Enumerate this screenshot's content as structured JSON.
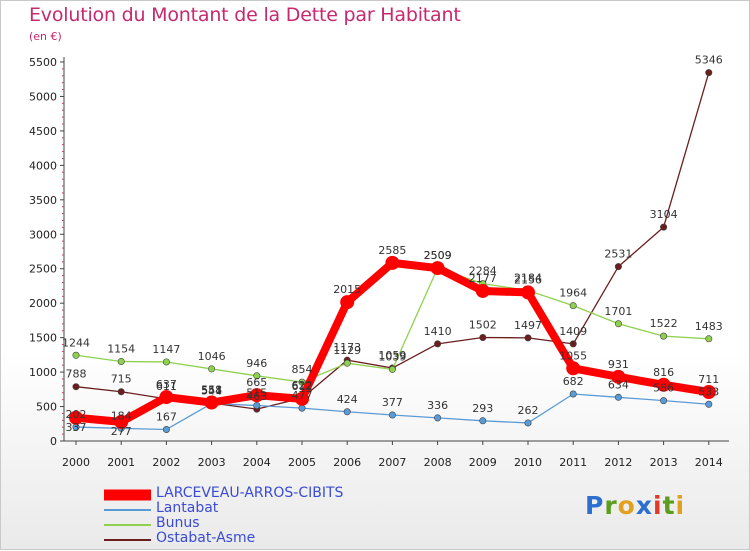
{
  "title": "Evolution du Montant de la Dette par Habitant",
  "subtitle": "(en €)",
  "logo": {
    "letters": [
      "P",
      "r",
      "o",
      "x",
      "i",
      "t",
      "i"
    ],
    "colors": [
      "#2c6fcf",
      "#5b9e1e",
      "#e0a020",
      "#2c6fcf",
      "#e23a2a",
      "#5b9e1e",
      "#e0a020"
    ]
  },
  "chart_data": {
    "type": "line",
    "categories": [
      "2000",
      "2001",
      "2002",
      "2003",
      "2004",
      "2005",
      "2006",
      "2007",
      "2008",
      "2009",
      "2010",
      "2011",
      "2012",
      "2013",
      "2014"
    ],
    "y_ticks": [
      0,
      500,
      1000,
      1500,
      2000,
      2500,
      3000,
      3500,
      4000,
      4500,
      5000,
      5500
    ],
    "ylim": [
      0,
      5500
    ],
    "grid": false,
    "legend_position": "bottom-left",
    "series": [
      {
        "name": "LARCEVEAU-ARROS-CIBITS",
        "color": "#ff0000",
        "values": [
          337,
          277,
          637,
          558,
          665,
          612,
          2015,
          2585,
          2509,
          2177,
          2156,
          1055,
          931,
          816,
          711
        ],
        "labels": [
          "337",
          "277",
          "637",
          "558",
          "665",
          "612",
          "2015",
          "2585",
          "2509",
          "2177",
          "2156",
          "1055",
          "931",
          "816",
          "711"
        ]
      },
      {
        "name": "Lantabat",
        "color": "#5b9bd5",
        "values": [
          202,
          184,
          167,
          544,
          515,
          477,
          424,
          377,
          336,
          293,
          262,
          682,
          634,
          586,
          533
        ],
        "labels": [
          "202",
          "184",
          "167",
          "544",
          "515",
          "477",
          "424",
          "377",
          "336",
          "293",
          "262",
          "682",
          "634",
          "586",
          "533"
        ]
      },
      {
        "name": "Bunus",
        "color": "#8fd14f",
        "values": [
          1244,
          1154,
          1147,
          1046,
          946,
          854,
          1129,
          1039,
          2509,
          2284,
          2184,
          1964,
          1701,
          1522,
          1483
        ],
        "labels": [
          "1244",
          "1154",
          "1147",
          "1046",
          "946",
          "854",
          "1129",
          "1039",
          "2509",
          "2284",
          "2184",
          "1964",
          "1701",
          "1522",
          "1483"
        ]
      },
      {
        "name": "Ostabat-Asme",
        "color": "#6b1e1e",
        "values": [
          788,
          715,
          611,
          551,
          463,
          622,
          1173,
          1059,
          1410,
          1502,
          1497,
          1409,
          2531,
          3104,
          5346
        ],
        "labels": [
          "788",
          "715",
          "611",
          "551",
          "463",
          "622",
          "1173",
          "1059",
          "1410",
          "1502",
          "1497",
          "1409",
          "2531",
          "3104",
          "5346"
        ]
      }
    ]
  }
}
